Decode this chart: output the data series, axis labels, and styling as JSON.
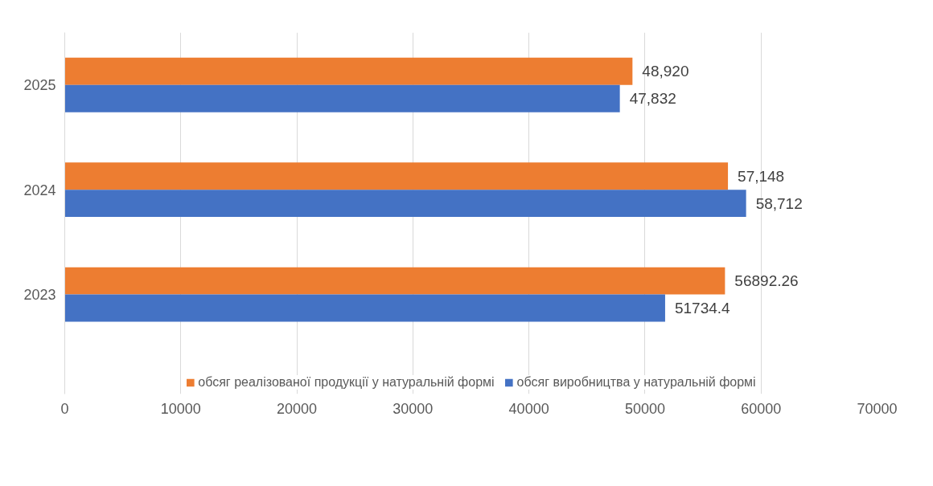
{
  "chart_data": {
    "type": "bar",
    "orientation": "horizontal",
    "categories": [
      "2025",
      "2024",
      "2023"
    ],
    "series": [
      {
        "name": "обсяг реалізованої продукції у натуральній формі",
        "color": "#ed7d31",
        "values": [
          48920,
          57148,
          56892.26
        ],
        "value_labels": [
          "48,920",
          "57,148",
          "56892.26"
        ]
      },
      {
        "name": "обсяг виробництва у натуральній формі",
        "color": "#4472c4",
        "values": [
          47832,
          58712,
          51734.4
        ],
        "value_labels": [
          "47,832",
          "58,712",
          "51734.4"
        ]
      }
    ],
    "xlim": [
      0,
      70000
    ],
    "xticks": [
      0,
      10000,
      20000,
      30000,
      40000,
      50000,
      60000,
      70000
    ],
    "grid": "x",
    "legend": "bottom"
  }
}
